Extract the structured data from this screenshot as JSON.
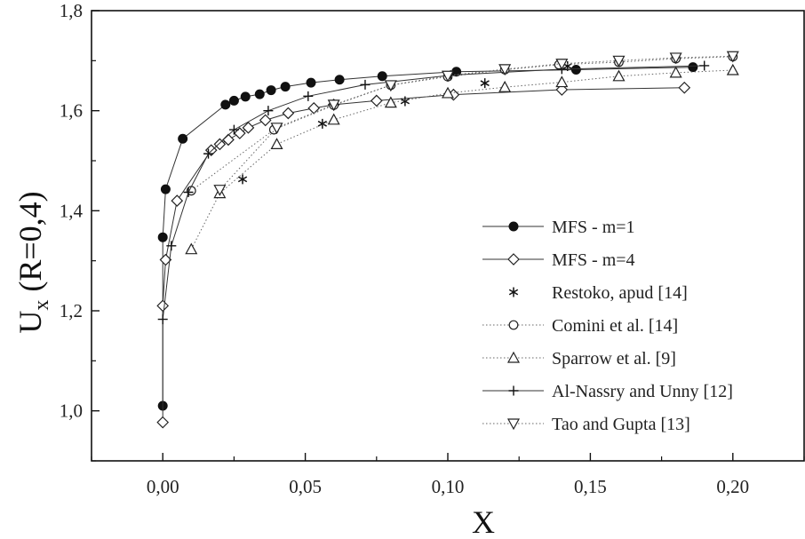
{
  "chart_data": {
    "type": "line",
    "title": "",
    "xlabel": "X",
    "ylabel_main": "U",
    "ylabel_sub": "x",
    "ylabel_rest": " (R=0,4)",
    "xlim": [
      -0.025,
      0.225
    ],
    "ylim": [
      0.9,
      1.8
    ],
    "x_ticks": [
      0.0,
      0.05,
      0.1,
      0.15,
      0.2
    ],
    "x_tick_labels": [
      "0,00",
      "0,05",
      "0,10",
      "0,15",
      "0,20"
    ],
    "y_ticks": [
      1.0,
      1.2,
      1.4,
      1.6,
      1.8
    ],
    "y_tick_labels": [
      "1,0",
      "1,2",
      "1,4",
      "1,6",
      "1,8"
    ],
    "grid": false,
    "legend_position": "bottom-right",
    "series": [
      {
        "name": "MFS - m=1",
        "marker": "filled-circle",
        "line": "solid",
        "points": [
          [
            0.0,
            1.01
          ],
          [
            0.0,
            1.347
          ],
          [
            0.001,
            1.443
          ],
          [
            0.007,
            1.544
          ],
          [
            0.022,
            1.612
          ],
          [
            0.025,
            1.62
          ],
          [
            0.029,
            1.628
          ],
          [
            0.034,
            1.633
          ],
          [
            0.038,
            1.641
          ],
          [
            0.043,
            1.648
          ],
          [
            0.052,
            1.656
          ],
          [
            0.062,
            1.662
          ],
          [
            0.077,
            1.669
          ],
          [
            0.103,
            1.678
          ],
          [
            0.145,
            1.682
          ],
          [
            0.186,
            1.687
          ]
        ]
      },
      {
        "name": "MFS - m=4",
        "marker": "diamond",
        "line": "solid",
        "points": [
          [
            0.0,
            0.977
          ],
          [
            0.0,
            1.21
          ],
          [
            0.001,
            1.302
          ],
          [
            0.005,
            1.42
          ],
          [
            0.017,
            1.521
          ],
          [
            0.02,
            1.533
          ],
          [
            0.023,
            1.542
          ],
          [
            0.027,
            1.555
          ],
          [
            0.03,
            1.566
          ],
          [
            0.036,
            1.581
          ],
          [
            0.044,
            1.595
          ],
          [
            0.053,
            1.605
          ],
          [
            0.06,
            1.612
          ],
          [
            0.075,
            1.62
          ],
          [
            0.102,
            1.632
          ],
          [
            0.14,
            1.642
          ],
          [
            0.183,
            1.646
          ]
        ]
      },
      {
        "name": "Restoko, apud [14]",
        "marker": "asterisk",
        "line": "none",
        "points": [
          [
            0.028,
            1.463
          ],
          [
            0.056,
            1.574
          ],
          [
            0.085,
            1.619
          ],
          [
            0.113,
            1.655
          ],
          [
            0.142,
            1.689
          ]
        ]
      },
      {
        "name": "Comini et al. [14]",
        "marker": "open-circle",
        "line": "dotted",
        "points": [
          [
            0.01,
            1.44
          ],
          [
            0.039,
            1.562
          ],
          [
            0.06,
            1.611
          ],
          [
            0.08,
            1.651
          ],
          [
            0.1,
            1.668
          ],
          [
            0.12,
            1.682
          ],
          [
            0.139,
            1.692
          ],
          [
            0.16,
            1.697
          ],
          [
            0.18,
            1.704
          ],
          [
            0.2,
            1.708
          ]
        ]
      },
      {
        "name": "Sparrow et al. [9]",
        "marker": "triangle-up",
        "line": "dotted",
        "points": [
          [
            0.01,
            1.323
          ],
          [
            0.02,
            1.435
          ],
          [
            0.04,
            1.533
          ],
          [
            0.06,
            1.582
          ],
          [
            0.08,
            1.616
          ],
          [
            0.1,
            1.635
          ],
          [
            0.12,
            1.647
          ],
          [
            0.14,
            1.657
          ],
          [
            0.16,
            1.669
          ],
          [
            0.18,
            1.676
          ],
          [
            0.2,
            1.681
          ]
        ]
      },
      {
        "name": "Al-Nassry and Unny [12]",
        "marker": "plus",
        "line": "solid",
        "points": [
          [
            0.0,
            1.183
          ],
          [
            0.003,
            1.33
          ],
          [
            0.009,
            1.437
          ],
          [
            0.016,
            1.514
          ],
          [
            0.025,
            1.562
          ],
          [
            0.037,
            1.6
          ],
          [
            0.051,
            1.629
          ],
          [
            0.071,
            1.652
          ],
          [
            0.101,
            1.671
          ],
          [
            0.14,
            1.683
          ],
          [
            0.19,
            1.69
          ]
        ]
      },
      {
        "name": "Tao and Gupta [13]",
        "marker": "triangle-down",
        "line": "dotted",
        "points": [
          [
            0.02,
            1.442
          ],
          [
            0.04,
            1.566
          ],
          [
            0.06,
            1.612
          ],
          [
            0.08,
            1.651
          ],
          [
            0.1,
            1.67
          ],
          [
            0.12,
            1.683
          ],
          [
            0.14,
            1.694
          ],
          [
            0.16,
            1.7
          ],
          [
            0.18,
            1.706
          ],
          [
            0.2,
            1.709
          ]
        ]
      }
    ]
  }
}
